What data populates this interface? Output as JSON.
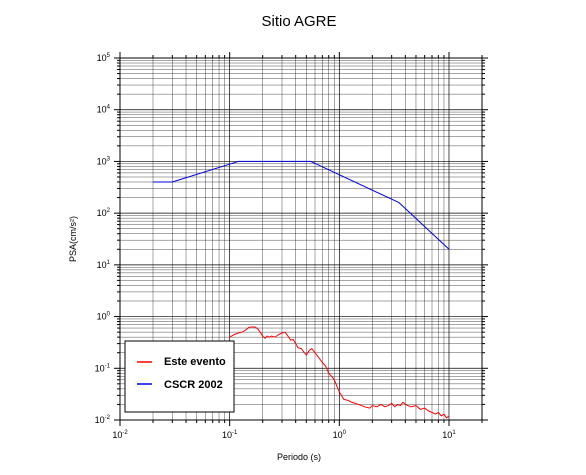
{
  "chart_data": {
    "type": "line",
    "title": "Sitio AGRE",
    "xlabel": "Periodo (s)",
    "ylabel": "PSA(cm/s²)",
    "xscale": "log",
    "yscale": "log",
    "xlim": [
      0.01,
      20
    ],
    "ylim": [
      0.01,
      100000
    ],
    "grid": true,
    "legend_position": "bottom-left",
    "x_ticks": [
      {
        "base": "10",
        "exp": "-2",
        "value": 0.01
      },
      {
        "base": "10",
        "exp": "-1",
        "value": 0.1
      },
      {
        "base": "10",
        "exp": "0",
        "value": 1
      },
      {
        "base": "10",
        "exp": "1",
        "value": 10
      }
    ],
    "y_ticks": [
      {
        "base": "10",
        "exp": "-2",
        "value": 0.01
      },
      {
        "base": "10",
        "exp": "-1",
        "value": 0.1
      },
      {
        "base": "10",
        "exp": "0",
        "value": 1
      },
      {
        "base": "10",
        "exp": "1",
        "value": 10
      },
      {
        "base": "10",
        "exp": "2",
        "value": 100
      },
      {
        "base": "10",
        "exp": "3",
        "value": 1000
      },
      {
        "base": "10",
        "exp": "4",
        "value": 10000
      },
      {
        "base": "10",
        "exp": "5",
        "value": 100000
      }
    ],
    "series": [
      {
        "name": "Este evento",
        "color": "#ff0000",
        "x": [
          0.1,
          0.11,
          0.12,
          0.13,
          0.14,
          0.15,
          0.16,
          0.17,
          0.18,
          0.19,
          0.2,
          0.21,
          0.22,
          0.23,
          0.24,
          0.26,
          0.28,
          0.3,
          0.32,
          0.34,
          0.36,
          0.38,
          0.4,
          0.42,
          0.45,
          0.48,
          0.5,
          0.53,
          0.56,
          0.6,
          0.65,
          0.7,
          0.75,
          0.8,
          0.85,
          0.9,
          0.95,
          1.0,
          1.1,
          1.2,
          1.3,
          1.4,
          1.5,
          1.7,
          1.9,
          2.0,
          2.2,
          2.4,
          2.6,
          2.8,
          3.0,
          3.2,
          3.4,
          3.6,
          3.8,
          4.0,
          4.5,
          5.0,
          5.5,
          6.0,
          6.5,
          7.0,
          7.5,
          8.0,
          8.5,
          9.0,
          9.5,
          10.0
        ],
        "values": [
          0.4,
          0.45,
          0.48,
          0.5,
          0.55,
          0.62,
          0.63,
          0.63,
          0.58,
          0.5,
          0.42,
          0.38,
          0.42,
          0.4,
          0.42,
          0.4,
          0.45,
          0.48,
          0.5,
          0.42,
          0.35,
          0.36,
          0.3,
          0.25,
          0.24,
          0.2,
          0.18,
          0.22,
          0.24,
          0.2,
          0.16,
          0.13,
          0.11,
          0.08,
          0.07,
          0.06,
          0.045,
          0.035,
          0.025,
          0.024,
          0.022,
          0.021,
          0.02,
          0.018,
          0.017,
          0.019,
          0.018,
          0.02,
          0.018,
          0.019,
          0.021,
          0.018,
          0.02,
          0.019,
          0.022,
          0.02,
          0.018,
          0.019,
          0.016,
          0.017,
          0.015,
          0.014,
          0.013,
          0.014,
          0.012,
          0.013,
          0.011,
          0.012
        ]
      },
      {
        "name": "CSCR 2002",
        "color": "#0000dd",
        "x": [
          0.02,
          0.03,
          0.12,
          0.55,
          3.5,
          10.0
        ],
        "values": [
          400,
          400,
          1000,
          1000,
          160,
          20
        ]
      }
    ]
  }
}
